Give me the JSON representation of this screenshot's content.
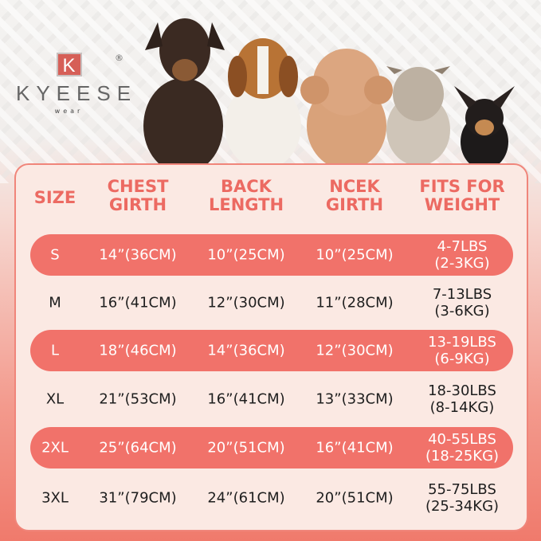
{
  "brand": {
    "logo_letter": "K",
    "name": "KYEESE",
    "sub": "wear",
    "registered": "®"
  },
  "colors": {
    "accent": "#f1726a",
    "header_text": "#ec6a62",
    "panel_bg": "#fbe9e3"
  },
  "table": {
    "headers": [
      [
        "SIZE"
      ],
      [
        "CHEST",
        "GIRTH"
      ],
      [
        "BACK",
        "LENGTH"
      ],
      [
        "NCEK",
        "GIRTH"
      ],
      [
        "FITS FOR",
        "WEIGHT"
      ]
    ],
    "rows": [
      {
        "size": "S",
        "chest": "14”(36CM)",
        "back": "10”(25CM)",
        "neck": "10”(25CM)",
        "weight": [
          "4-7LBS",
          "(2-3KG)"
        ],
        "highlight": true
      },
      {
        "size": "M",
        "chest": "16”(41CM)",
        "back": "12”(30CM)",
        "neck": "11”(28CM)",
        "weight": [
          "7-13LBS",
          "(3-6KG)"
        ],
        "highlight": false
      },
      {
        "size": "L",
        "chest": "18”(46CM)",
        "back": "14”(36CM)",
        "neck": "12”(30CM)",
        "weight": [
          "13-19LBS",
          "(6-9KG)"
        ],
        "highlight": true
      },
      {
        "size": "XL",
        "chest": "21”(53CM)",
        "back": "16”(41CM)",
        "neck": "13”(33CM)",
        "weight": [
          "18-30LBS",
          "(8-14KG)"
        ],
        "highlight": false
      },
      {
        "size": "2XL",
        "chest": "25”(64CM)",
        "back": "20”(51CM)",
        "neck": "16”(41CM)",
        "weight": [
          "40-55LBS",
          "(18-25KG)"
        ],
        "highlight": true
      },
      {
        "size": "3XL",
        "chest": "31”(79CM)",
        "back": "24”(61CM)",
        "neck": "20”(51CM)",
        "weight": [
          "55-75LBS",
          "(25-34KG)"
        ],
        "highlight": false
      }
    ]
  }
}
